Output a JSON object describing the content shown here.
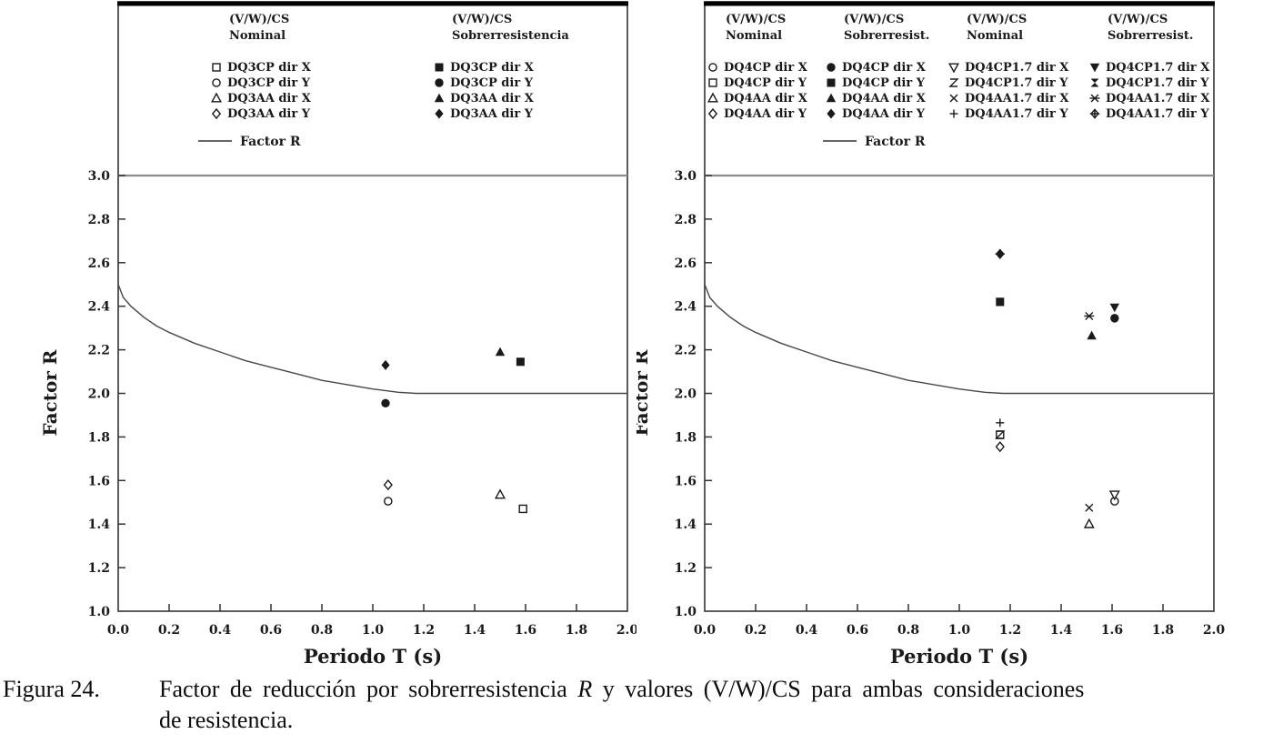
{
  "caption": {
    "label": "Figura 24.",
    "before_r": "Factor de reducción por sobrerresistencia",
    "r": "R",
    "after_r": "y valores (V/W)/CS para ambas consideraciones",
    "line2": "de resistencia."
  },
  "colors": {
    "ink": "#1a1a1a",
    "reference_line": "#8c8c8c",
    "curve": "#474747"
  },
  "chart_data": [
    {
      "type": "scatter",
      "title": "",
      "xlabel": "Periodo T (s)",
      "ylabel": "Factor R",
      "xlim": [
        0.0,
        2.0
      ],
      "ylim": [
        1.0,
        3.0
      ],
      "grid": false,
      "legend_position": "top-inside",
      "x_ticks": [
        "0.0",
        "0.2",
        "0.4",
        "0.6",
        "0.8",
        "1.0",
        "1.2",
        "1.4",
        "1.6",
        "1.8",
        "2.0"
      ],
      "y_ticks": [
        "1.0",
        "1.2",
        "1.4",
        "1.6",
        "1.8",
        "2.0",
        "2.2",
        "2.4",
        "2.6",
        "2.8",
        "3.0"
      ],
      "reference_line_y": 3.0,
      "legend_columns": [
        {
          "header": [
            "(V/W)/CS",
            "Nominal"
          ],
          "items": [
            {
              "marker": "square-open",
              "label": "DQ3CP dir X"
            },
            {
              "marker": "circle-open",
              "label": "DQ3CP dir Y"
            },
            {
              "marker": "triangle-open",
              "label": "DQ3AA dir X"
            },
            {
              "marker": "diamond-open",
              "label": "DQ3AA dir Y"
            }
          ]
        },
        {
          "header": [
            "(V/W)/CS",
            "Sobrerresistencia"
          ],
          "items": [
            {
              "marker": "square-filled",
              "label": "DQ3CP dir X"
            },
            {
              "marker": "circle-filled",
              "label": "DQ3CP dir Y"
            },
            {
              "marker": "triangle-filled",
              "label": "DQ3AA dir X"
            },
            {
              "marker": "diamond-filled",
              "label": "DQ3AA dir Y"
            }
          ]
        }
      ],
      "line_series": {
        "name": "Factor R",
        "points": [
          [
            0,
            2.5
          ],
          [
            0.02,
            2.44
          ],
          [
            0.05,
            2.4
          ],
          [
            0.1,
            2.35
          ],
          [
            0.15,
            2.31
          ],
          [
            0.2,
            2.28
          ],
          [
            0.3,
            2.23
          ],
          [
            0.4,
            2.19
          ],
          [
            0.5,
            2.15
          ],
          [
            0.6,
            2.12
          ],
          [
            0.7,
            2.09
          ],
          [
            0.8,
            2.06
          ],
          [
            0.9,
            2.04
          ],
          [
            1.0,
            2.02
          ],
          [
            1.1,
            2.005
          ],
          [
            1.17,
            2.0
          ],
          [
            2.0,
            2.0
          ]
        ]
      },
      "scatter_series": [
        {
          "name": "DQ3CP dir X (V/W)/CS Nominal",
          "marker": "square-open",
          "x": 1.59,
          "y": 1.47
        },
        {
          "name": "DQ3CP dir Y (V/W)/CS Nominal",
          "marker": "circle-open",
          "x": 1.06,
          "y": 1.505
        },
        {
          "name": "DQ3AA dir X (V/W)/CS Nominal",
          "marker": "triangle-open",
          "x": 1.5,
          "y": 1.535
        },
        {
          "name": "DQ3AA dir Y (V/W)/CS Nominal",
          "marker": "diamond-open",
          "x": 1.06,
          "y": 1.58
        },
        {
          "name": "DQ3CP dir X (V/W)/CS Sobrerresistencia",
          "marker": "square-filled",
          "x": 1.58,
          "y": 2.145
        },
        {
          "name": "DQ3CP dir Y (V/W)/CS Sobrerresistencia",
          "marker": "circle-filled",
          "x": 1.05,
          "y": 1.955
        },
        {
          "name": "DQ3AA dir X (V/W)/CS Sobrerresistencia",
          "marker": "triangle-filled",
          "x": 1.5,
          "y": 2.19
        },
        {
          "name": "DQ3AA dir Y (V/W)/CS Sobrerresistencia",
          "marker": "diamond-filled",
          "x": 1.05,
          "y": 2.13
        }
      ]
    },
    {
      "type": "scatter",
      "title": "",
      "xlabel": "Periodo T (s)",
      "ylabel": "Factor R",
      "xlim": [
        0.0,
        2.0
      ],
      "ylim": [
        1.0,
        3.0
      ],
      "grid": false,
      "legend_position": "top-inside",
      "x_ticks": [
        "0.0",
        "0.2",
        "0.4",
        "0.6",
        "0.8",
        "1.0",
        "1.2",
        "1.4",
        "1.6",
        "1.8",
        "2.0"
      ],
      "y_ticks": [
        "1.0",
        "1.2",
        "1.4",
        "1.6",
        "1.8",
        "2.0",
        "2.2",
        "2.4",
        "2.6",
        "2.8",
        "3.0"
      ],
      "reference_line_y": 3.0,
      "legend_columns": [
        {
          "header": [
            "(V/W)/CS",
            "Nominal"
          ],
          "items": [
            {
              "marker": "circle-open",
              "label": "DQ4CP dir X"
            },
            {
              "marker": "square-open",
              "label": "DQ4CP dir Y"
            },
            {
              "marker": "triangle-open",
              "label": "DQ4AA dir X"
            },
            {
              "marker": "diamond-open",
              "label": "DQ4AA dir Y"
            }
          ]
        },
        {
          "header": [
            "(V/W)/CS",
            "Sobrerresist."
          ],
          "items": [
            {
              "marker": "circle-filled",
              "label": "DQ4CP dir X"
            },
            {
              "marker": "square-filled",
              "label": "DQ4CP dir Y"
            },
            {
              "marker": "triangle-filled",
              "label": "DQ4AA dir X"
            },
            {
              "marker": "diamond-filled",
              "label": "DQ4AA dir Y"
            }
          ]
        },
        {
          "header": [
            "(V/W)/CS",
            "Nominal"
          ],
          "items": [
            {
              "marker": "triangle-down-open",
              "label": "DQ4CP1.7 dir X"
            },
            {
              "marker": "z-open",
              "label": "DQ4CP1.7 dir Y"
            },
            {
              "marker": "x-cross",
              "label": "DQ4AA1.7 dir X"
            },
            {
              "marker": "plus",
              "label": "DQ4AA1.7 dir Y"
            }
          ]
        },
        {
          "header": [
            "(V/W)/CS",
            "Sobrerresist."
          ],
          "items": [
            {
              "marker": "triangle-down-filled",
              "label": "DQ4CP1.7 dir X"
            },
            {
              "marker": "z-filled",
              "label": "DQ4CP1.7 dir Y"
            },
            {
              "marker": "x-bar",
              "label": "DQ4AA1.7 dir X"
            },
            {
              "marker": "diamond-plus",
              "label": "DQ4AA1.7 dir Y"
            }
          ]
        }
      ],
      "line_series": {
        "name": "Factor R",
        "points": [
          [
            0,
            2.5
          ],
          [
            0.02,
            2.44
          ],
          [
            0.05,
            2.4
          ],
          [
            0.1,
            2.35
          ],
          [
            0.15,
            2.31
          ],
          [
            0.2,
            2.28
          ],
          [
            0.3,
            2.23
          ],
          [
            0.4,
            2.19
          ],
          [
            0.5,
            2.15
          ],
          [
            0.6,
            2.12
          ],
          [
            0.7,
            2.09
          ],
          [
            0.8,
            2.06
          ],
          [
            0.9,
            2.04
          ],
          [
            1.0,
            2.02
          ],
          [
            1.1,
            2.005
          ],
          [
            1.17,
            2.0
          ],
          [
            2.0,
            2.0
          ]
        ]
      },
      "scatter_series": [
        {
          "name": "DQ4CP1.7 dir Y (V/W)/CS Sobrerresist.",
          "marker": "z-filled",
          "x": 1.16,
          "y": 2.42
        },
        {
          "name": "DQ4AA1.7 dir Y (V/W)/CS Sobrerresist.",
          "marker": "diamond-plus",
          "x": 1.16,
          "y": 2.64
        },
        {
          "name": "DQ4CP dir X (V/W)/CS Nominal",
          "marker": "circle-open",
          "x": 1.61,
          "y": 1.505
        },
        {
          "name": "DQ4CP dir Y (V/W)/CS Nominal",
          "marker": "square-open",
          "x": 1.16,
          "y": 1.81
        },
        {
          "name": "DQ4AA dir X (V/W)/CS Nominal",
          "marker": "triangle-open",
          "x": 1.51,
          "y": 1.4
        },
        {
          "name": "DQ4AA dir Y (V/W)/CS Nominal",
          "marker": "diamond-open",
          "x": 1.16,
          "y": 1.755
        },
        {
          "name": "DQ4CP1.7 dir X (V/W)/CS Nominal",
          "marker": "triangle-down-open",
          "x": 1.61,
          "y": 1.535
        },
        {
          "name": "DQ4CP1.7 dir Y (V/W)/CS Nominal",
          "marker": "z-open",
          "x": 1.16,
          "y": 1.81
        },
        {
          "name": "DQ4AA1.7 dir X (V/W)/CS Nominal",
          "marker": "x-cross",
          "x": 1.51,
          "y": 1.475
        },
        {
          "name": "DQ4AA1.7 dir Y (V/W)/CS Nominal",
          "marker": "plus",
          "x": 1.16,
          "y": 1.865
        },
        {
          "name": "DQ4CP dir X (V/W)/CS Sobrerresist.",
          "marker": "circle-filled",
          "x": 1.61,
          "y": 2.345
        },
        {
          "name": "DQ4CP dir Y (V/W)/CS Sobrerresist.",
          "marker": "square-filled",
          "x": 1.16,
          "y": 2.42
        },
        {
          "name": "DQ4AA dir X (V/W)/CS Sobrerresist.",
          "marker": "triangle-filled",
          "x": 1.52,
          "y": 2.265
        },
        {
          "name": "DQ4AA dir Y (V/W)/CS Sobrerresist.",
          "marker": "diamond-filled",
          "x": 1.16,
          "y": 2.64
        },
        {
          "name": "DQ4CP1.7 dir X (V/W)/CS Sobrerresist.",
          "marker": "triangle-down-filled",
          "x": 1.61,
          "y": 2.395
        },
        {
          "name": "DQ4AA1.7 dir X (V/W)/CS Sobrerresist.",
          "marker": "x-bar",
          "x": 1.51,
          "y": 2.355
        }
      ]
    }
  ]
}
